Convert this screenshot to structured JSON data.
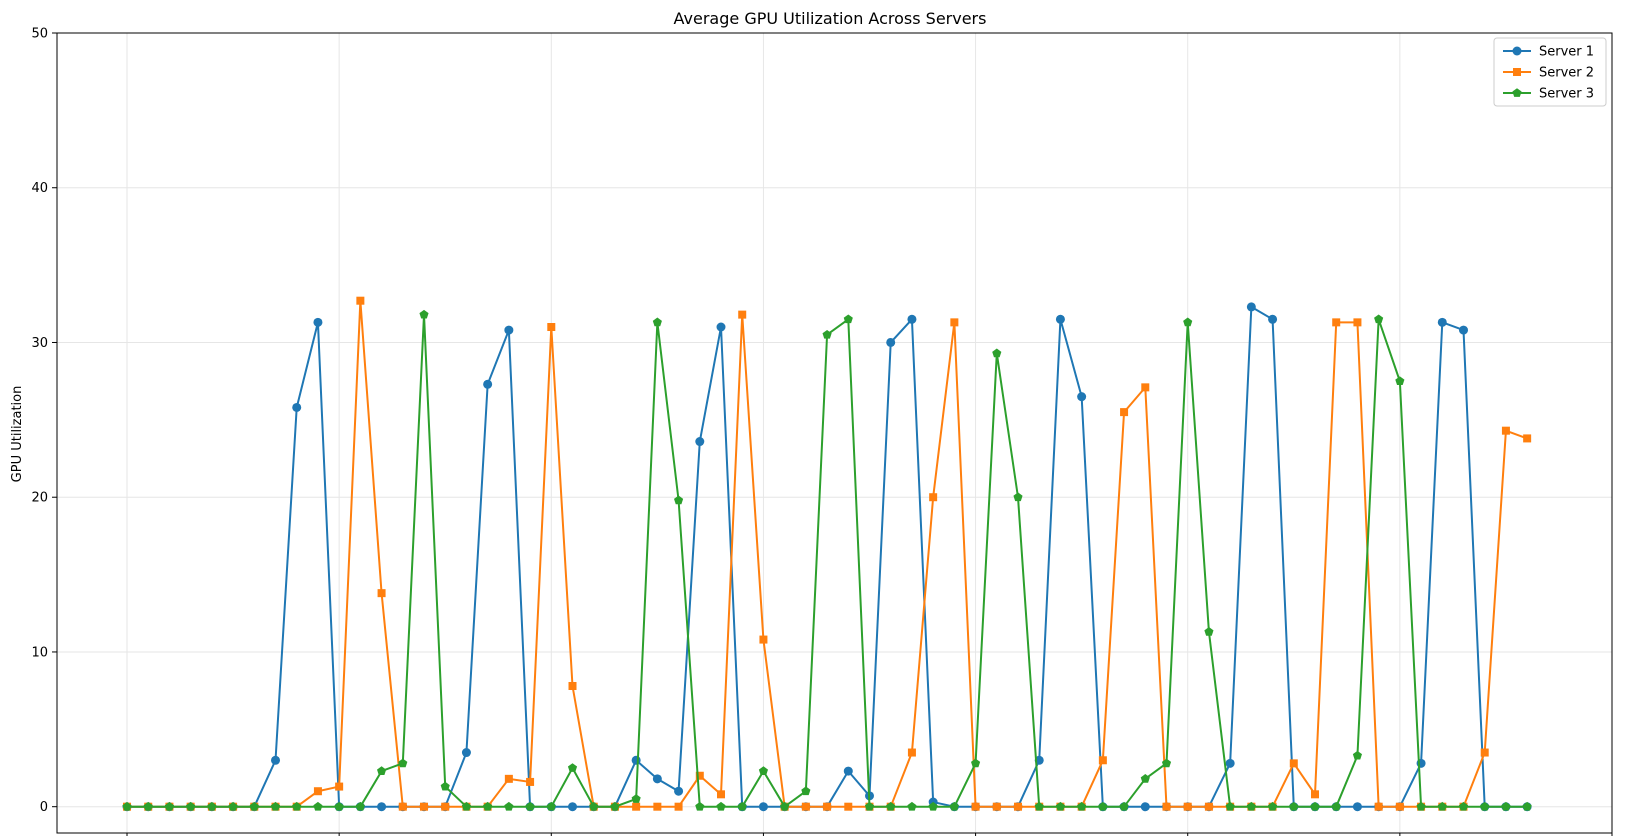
{
  "chart_data": {
    "type": "line",
    "title": "Average GPU Utilization Across Servers",
    "xlabel": "",
    "ylabel": "GPU Utilization",
    "xlim": [
      -3.3,
      70
    ],
    "ylim": [
      -1.7,
      50
    ],
    "xticks": [
      0,
      10,
      20,
      30,
      40,
      50,
      60,
      70
    ],
    "yticks": [
      0,
      10,
      20,
      30,
      40,
      50
    ],
    "grid": true,
    "legend_position": "top-right",
    "x": [
      0,
      1,
      2,
      3,
      4,
      5,
      6,
      7,
      8,
      9,
      10,
      11,
      12,
      13,
      14,
      15,
      16,
      17,
      18,
      19,
      20,
      21,
      22,
      23,
      24,
      25,
      26,
      27,
      28,
      29,
      30,
      31,
      32,
      33,
      34,
      35,
      36,
      37,
      38,
      39,
      40,
      41,
      42,
      43,
      44,
      45,
      46,
      47,
      48,
      49,
      50,
      51,
      52,
      53,
      54,
      55,
      56,
      57,
      58,
      59,
      60,
      61,
      62,
      63,
      64,
      65,
      66
    ],
    "series": [
      {
        "name": "Server 1",
        "color": "#1f77b4",
        "marker": "circle",
        "values": [
          0,
          0,
          0,
          0,
          0,
          0,
          0,
          3,
          25.8,
          31.3,
          0,
          0,
          0,
          0,
          0,
          0,
          3.5,
          27.3,
          30.8,
          0,
          0,
          0,
          0,
          0,
          3,
          1.8,
          1,
          23.6,
          31,
          0,
          0,
          0,
          0,
          0,
          2.3,
          0.7,
          30,
          31.5,
          0.3,
          0,
          0,
          0,
          0,
          3,
          31.5,
          26.5,
          0,
          0,
          0,
          0,
          0,
          0,
          2.8,
          32.3,
          31.5,
          0,
          0,
          0,
          0,
          0,
          0,
          2.8,
          31.3,
          30.8,
          0,
          0,
          0
        ]
      },
      {
        "name": "Server 2",
        "color": "#ff7f0e",
        "marker": "square",
        "values": [
          0,
          0,
          0,
          0,
          0,
          0,
          0,
          0,
          0,
          1,
          1.3,
          32.7,
          13.8,
          0,
          0,
          0,
          0,
          0,
          1.8,
          1.6,
          31,
          7.8,
          0,
          0,
          0,
          0,
          0,
          2,
          0.8,
          31.8,
          10.8,
          0,
          0,
          0,
          0,
          0,
          0,
          3.5,
          20,
          31.3,
          0,
          0,
          0,
          0,
          0,
          0,
          3,
          25.5,
          27.1,
          0,
          0,
          0,
          0,
          0,
          0,
          2.8,
          0.8,
          31.3,
          31.3,
          0,
          0,
          0,
          0,
          0,
          3.5,
          24.3,
          23.8
        ]
      },
      {
        "name": "Server 3",
        "color": "#2ca02c",
        "marker": "pentagon",
        "values": [
          0,
          0,
          0,
          0,
          0,
          0,
          0,
          0,
          0,
          0,
          0,
          0,
          2.3,
          2.8,
          31.8,
          1.3,
          0,
          0,
          0,
          0,
          0,
          2.5,
          0,
          0,
          0.5,
          31.3,
          19.8,
          0,
          0,
          0,
          2.3,
          0,
          1,
          30.5,
          31.5,
          0,
          0,
          0,
          0,
          0,
          2.8,
          29.3,
          20,
          0,
          0,
          0,
          0,
          0,
          1.8,
          2.8,
          31.3,
          11.3,
          0,
          0,
          0,
          0,
          0,
          0,
          3.3,
          31.5,
          27.5,
          0,
          0,
          0,
          0,
          0,
          0
        ]
      }
    ]
  }
}
